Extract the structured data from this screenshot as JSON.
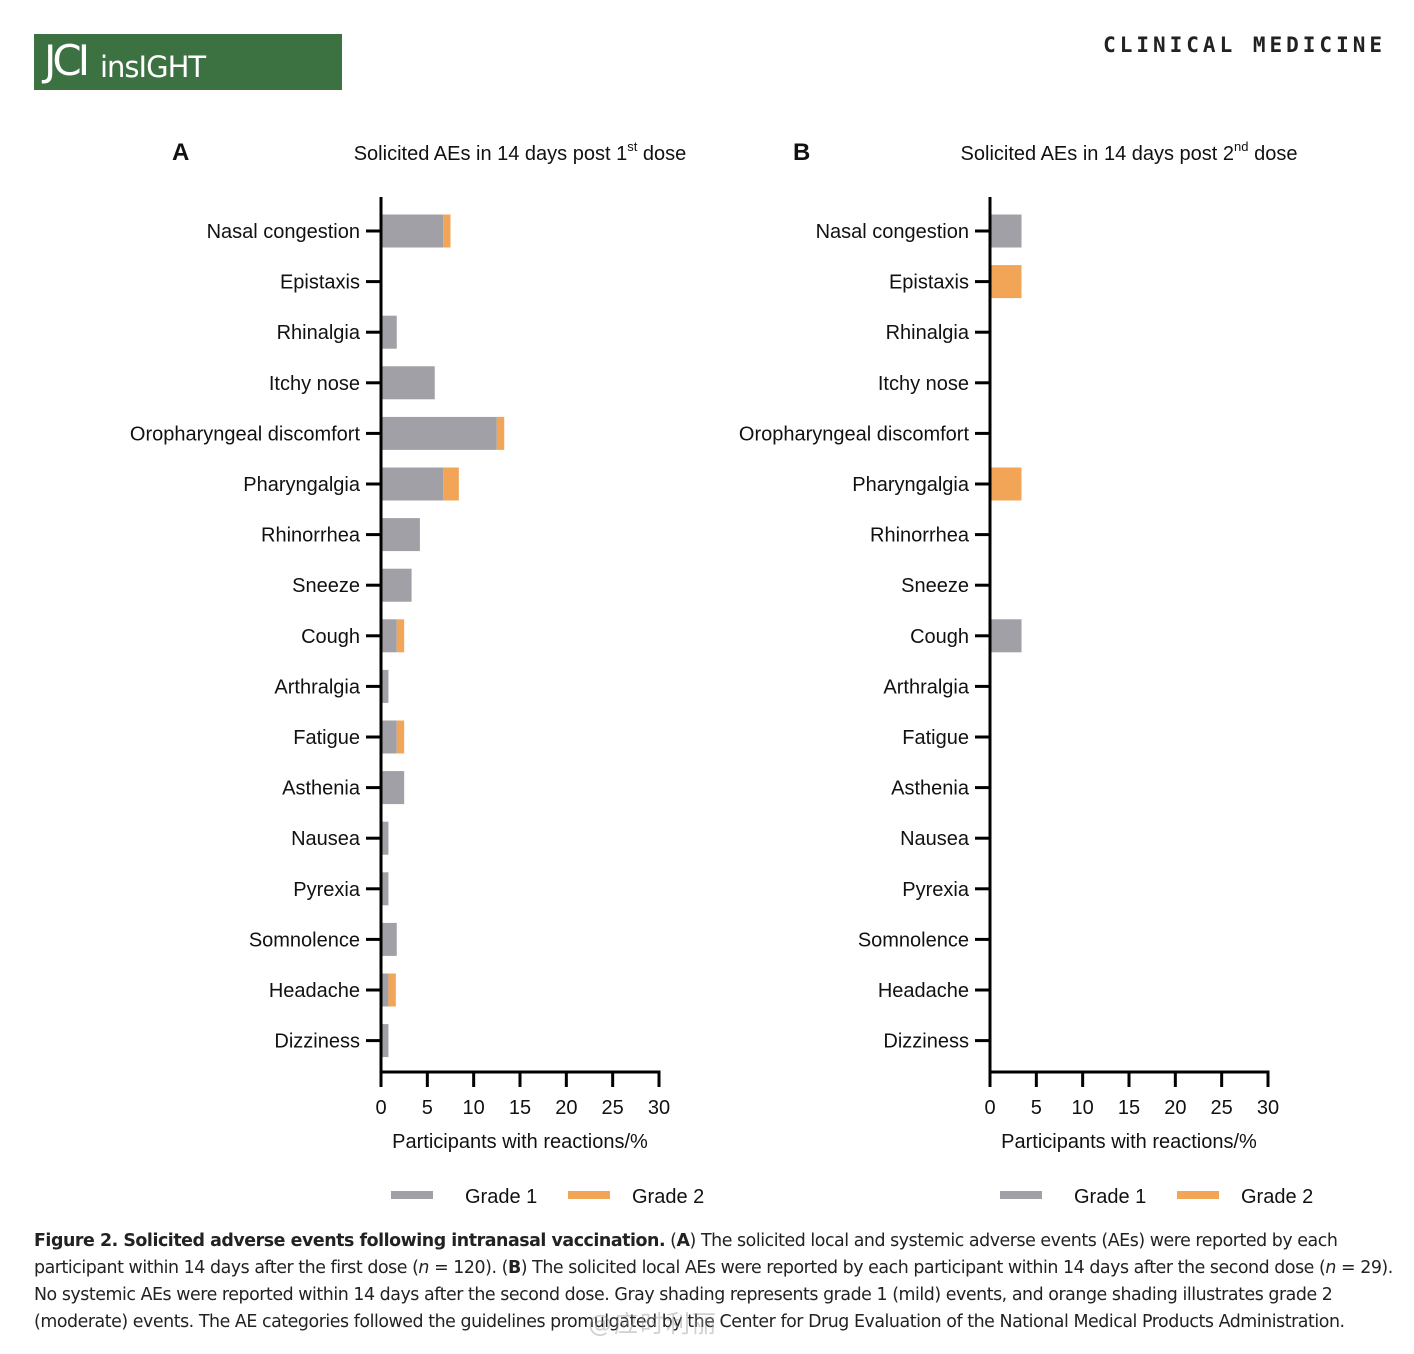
{
  "header": {
    "logo_main": "JCI",
    "logo_sub": "insIGHT",
    "section": "CLINICAL MEDICINE"
  },
  "colors": {
    "grade1": "#a0a0a6",
    "grade2": "#f2a557",
    "brand": "#3c7242"
  },
  "chart_data": [
    {
      "panel": "A",
      "type": "bar",
      "orientation": "horizontal",
      "stacked": true,
      "title_pre": "Solicited AEs in 14 days post 1",
      "title_sup": "st",
      "title_post": " dose",
      "xlabel": "Participants with reactions/%",
      "xlim": [
        0,
        30
      ],
      "xticks": [
        0,
        5,
        10,
        15,
        20,
        25,
        30
      ],
      "categories": [
        "Nasal congestion",
        "Epistaxis",
        "Rhinalgia",
        "Itchy nose",
        "Oropharyngeal discomfort",
        "Pharyngalgia",
        "Rhinorrhea",
        "Sneeze",
        "Cough",
        "Arthralgia",
        "Fatigue",
        "Asthenia",
        "Nausea",
        "Pyrexia",
        "Somnolence",
        "Headache",
        "Dizziness"
      ],
      "series": [
        {
          "name": "Grade 1",
          "values": [
            6.7,
            0,
            1.7,
            5.8,
            12.5,
            6.7,
            4.2,
            3.3,
            1.7,
            0.8,
            1.7,
            2.5,
            0.8,
            0.8,
            1.7,
            0.8,
            0.8
          ]
        },
        {
          "name": "Grade 2",
          "values": [
            0.8,
            0,
            0,
            0,
            0.8,
            1.7,
            0,
            0,
            0.8,
            0,
            0.8,
            0,
            0,
            0,
            0,
            0.8,
            0
          ]
        }
      ],
      "legend": [
        "Grade 1",
        "Grade 2"
      ]
    },
    {
      "panel": "B",
      "type": "bar",
      "orientation": "horizontal",
      "stacked": true,
      "title_pre": "Solicited AEs in 14 days post 2",
      "title_sup": "nd",
      "title_post": " dose",
      "xlabel": "Participants with reactions/%",
      "xlim": [
        0,
        30
      ],
      "xticks": [
        0,
        5,
        10,
        15,
        20,
        25,
        30
      ],
      "categories": [
        "Nasal congestion",
        "Epistaxis",
        "Rhinalgia",
        "Itchy nose",
        "Oropharyngeal discomfort",
        "Pharyngalgia",
        "Rhinorrhea",
        "Sneeze",
        "Cough",
        "Arthralgia",
        "Fatigue",
        "Asthenia",
        "Nausea",
        "Pyrexia",
        "Somnolence",
        "Headache",
        "Dizziness"
      ],
      "series": [
        {
          "name": "Grade 1",
          "values": [
            3.4,
            0,
            0,
            0,
            0,
            0,
            0,
            0,
            3.4,
            0,
            0,
            0,
            0,
            0,
            0,
            0,
            0
          ]
        },
        {
          "name": "Grade 2",
          "values": [
            0,
            3.4,
            0,
            0,
            0,
            3.4,
            0,
            0,
            0,
            0,
            0,
            0,
            0,
            0,
            0,
            0,
            0
          ]
        }
      ],
      "legend": [
        "Grade 1",
        "Grade 2"
      ]
    }
  ],
  "caption": {
    "title": "Figure 2. Solicited adverse events following intranasal vaccination.",
    "p1": " (",
    "a": "A",
    "p2": ") The solicited local and systemic adverse events (AEs) were reported by each participant within 14 days after the first dose (",
    "n1_var": "n",
    "n1_val": " = 120). (",
    "b": "B",
    "p3": ") The solicited local AEs were reported by each participant within 14 days after the second dose (",
    "n2_var": "n",
    "n2_val": " = 29). No systemic AEs were reported within 14 days after the second dose. Gray shading represents grade 1 (mild) events, and orange shading illustrates grade 2 (moderate) events. The AE categories followed the guidelines promulgated by the Center for Drug Evaluation of the National Medical Products Administration."
  },
  "watermark": "@应时利丽"
}
